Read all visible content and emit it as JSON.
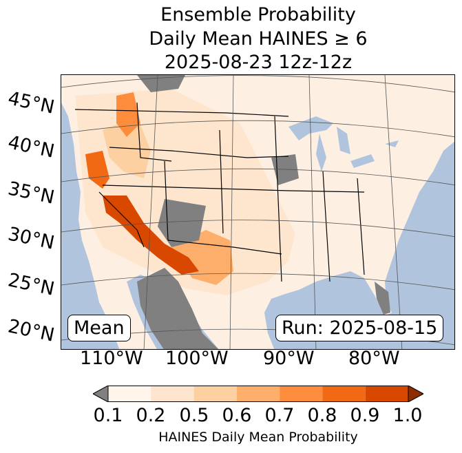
{
  "title": {
    "line1": "Ensemble Probability",
    "line2": "Daily Mean HAINES ≥ 6",
    "line3": "2025-08-23 12z-12z"
  },
  "map": {
    "lat_labels": [
      "45°N",
      "40°N",
      "35°N",
      "30°N",
      "25°N",
      "20°N"
    ],
    "lon_labels": [
      "110°W",
      "100°W",
      "90°W",
      "80°W"
    ],
    "ocean_color": "#b0c4de",
    "land_color": "#fdf0e3",
    "missing_color": "#808080",
    "mean_label": "Mean",
    "run_label": "Run: 2025-08-15"
  },
  "colorbar": {
    "label": "HAINES Daily Mean Probability",
    "ticks": [
      "0.1",
      "0.2",
      "0.5",
      "0.6",
      "0.7",
      "0.8",
      "0.9",
      "1.0"
    ],
    "colors": [
      "#808080",
      "#fff5eb",
      "#fee6ce",
      "#fdd0a2",
      "#fdae6b",
      "#fd8d3c",
      "#f16913",
      "#d94801",
      "#8c2d04"
    ],
    "extend": "both"
  }
}
